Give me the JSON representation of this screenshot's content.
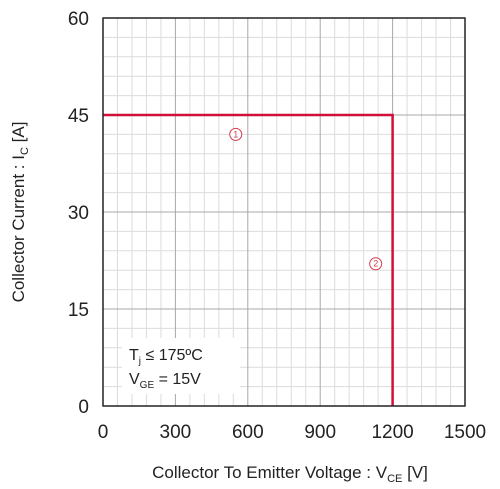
{
  "chart_data": {
    "type": "line",
    "x_ticks": [
      "0",
      "300",
      "600",
      "900",
      "1200",
      "1500"
    ],
    "y_ticks": [
      "0",
      "15",
      "30",
      "45",
      "60"
    ],
    "xlim": [
      0,
      1500
    ],
    "ylim": [
      0,
      60
    ],
    "x_minor_step": 60,
    "y_minor_step": 3,
    "x_major_step": 300,
    "y_major_step": 15,
    "xlabel": {
      "main": "Collector To Emitter Voltage : V",
      "sub": "CE",
      "suffix": " [V]"
    },
    "ylabel": {
      "main": "Collector Current : I",
      "sub": "C",
      "suffix": " [A]"
    },
    "grid": true,
    "series": [
      {
        "points": [
          [
            0,
            45
          ],
          [
            1200,
            45
          ],
          [
            1200,
            0
          ]
        ],
        "color": "#d0103a"
      }
    ],
    "markers": [
      {
        "label": "1",
        "x": 550,
        "y": 42
      },
      {
        "label": "2",
        "x": 1130,
        "y": 22
      }
    ],
    "conditions": {
      "line1": {
        "main": "T",
        "sub": "j",
        "suffix": " ≤ 175ºC"
      },
      "line2": {
        "main": "V",
        "sub": "GE",
        "suffix": " = 15V"
      }
    },
    "colors": {
      "grid_minor": "#dcdcdc",
      "grid_major": "#a8a8a8",
      "axis": "#222222"
    }
  }
}
